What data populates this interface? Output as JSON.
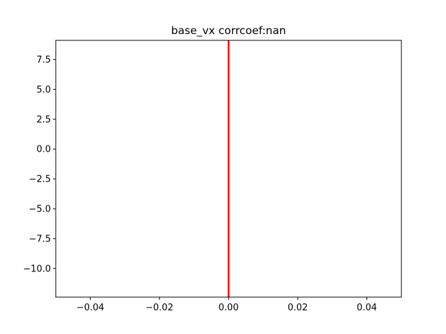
{
  "chart_data": {
    "type": "line",
    "title": "base_vx corrcoef:nan",
    "xlabel": "",
    "ylabel": "",
    "xlim": [
      -0.05,
      0.05
    ],
    "ylim": [
      -12.4,
      9.1
    ],
    "x_ticks": [
      -0.04,
      -0.02,
      0.0,
      0.02,
      0.04
    ],
    "x_tick_labels": [
      "−0.04",
      "−0.02",
      "0.00",
      "0.02",
      "0.04"
    ],
    "y_ticks": [
      7.5,
      5.0,
      2.5,
      0.0,
      -2.5,
      -5.0,
      -7.5,
      -10.0
    ],
    "y_tick_labels": [
      "7.5",
      "5.0",
      "2.5",
      "0.0",
      "−2.5",
      "−5.0",
      "−7.5",
      "−10.0"
    ],
    "grid": false,
    "series": [
      {
        "color": "#ff0000",
        "x": [
          0.0,
          0.0
        ],
        "y": [
          -12.4,
          9.1
        ]
      }
    ]
  }
}
